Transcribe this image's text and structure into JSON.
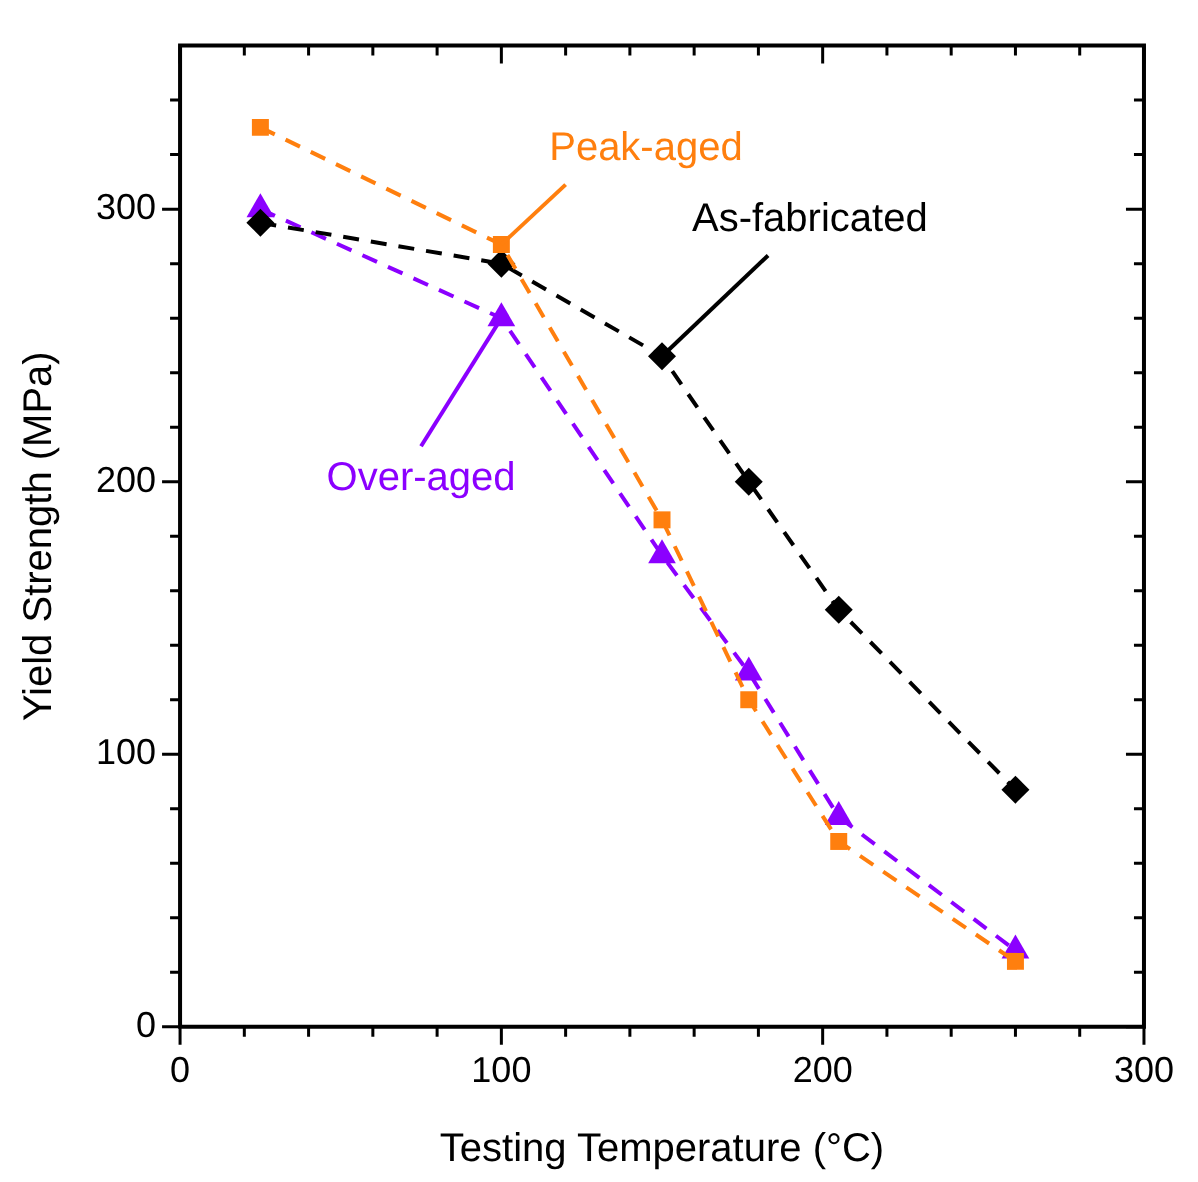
{
  "chart_data": {
    "type": "line",
    "xlabel": "Testing Temperature (°C)",
    "ylabel": "Yield Strength (MPa)",
    "xlim": [
      0,
      300
    ],
    "ylim": [
      0,
      360
    ],
    "xticks": [
      0,
      {
        "value": 20,
        "label": null
      },
      {
        "value": 40,
        "label": null
      },
      {
        "value": 60,
        "label": null
      },
      {
        "value": 80,
        "label": null
      },
      100,
      {
        "value": 120,
        "label": null
      },
      {
        "value": 140,
        "label": null
      },
      {
        "value": 160,
        "label": null
      },
      {
        "value": 180,
        "label": null
      },
      200,
      {
        "value": 220,
        "label": null
      },
      {
        "value": 240,
        "label": null
      },
      {
        "value": 260,
        "label": null
      },
      {
        "value": 280,
        "label": null
      },
      300
    ],
    "yticks": [
      0,
      {
        "value": 20,
        "label": null
      },
      {
        "value": 40,
        "label": null
      },
      {
        "value": 60,
        "label": null
      },
      {
        "value": 80,
        "label": null
      },
      100,
      {
        "value": 120,
        "label": null
      },
      {
        "value": 140,
        "label": null
      },
      {
        "value": 160,
        "label": null
      },
      {
        "value": 180,
        "label": null
      },
      200,
      {
        "value": 220,
        "label": null
      },
      {
        "value": 240,
        "label": null
      },
      {
        "value": 260,
        "label": null
      },
      {
        "value": 280,
        "label": null
      },
      300,
      {
        "value": 320,
        "label": null
      },
      {
        "value": 340,
        "label": null
      }
    ],
    "x": [
      25,
      100,
      150,
      177,
      205,
      260
    ],
    "grid": false,
    "legend": false,
    "line_style": "dashed",
    "series": [
      {
        "name": "Peak-aged",
        "color": "#ff7f0e",
        "marker": "square",
        "values": [
          330,
          287,
          186,
          120,
          68,
          24
        ]
      },
      {
        "name": "As-fabricated",
        "color": "#000000",
        "marker": "diamond",
        "values": [
          295,
          280,
          246,
          200,
          153,
          87
        ]
      },
      {
        "name": "Over-aged",
        "color": "#8b00ff",
        "marker": "triangle",
        "values": [
          300,
          260,
          173,
          130,
          77,
          28
        ]
      }
    ]
  }
}
